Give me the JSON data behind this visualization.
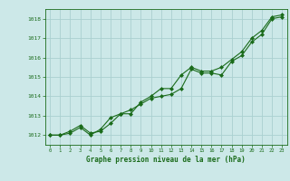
{
  "x": [
    0,
    1,
    2,
    3,
    4,
    5,
    6,
    7,
    8,
    9,
    10,
    11,
    12,
    13,
    14,
    15,
    16,
    17,
    18,
    19,
    20,
    21,
    22,
    23
  ],
  "line1": [
    1012.0,
    1012.0,
    1012.2,
    1012.5,
    1012.1,
    1012.2,
    1012.6,
    1013.1,
    1013.3,
    1013.6,
    1013.9,
    1014.0,
    1014.1,
    1014.4,
    1015.4,
    1015.2,
    1015.2,
    1015.1,
    1015.8,
    1016.1,
    1016.8,
    1017.2,
    1018.0,
    1018.1
  ],
  "line2": [
    1012.0,
    1012.0,
    1012.1,
    1012.4,
    1012.0,
    1012.3,
    1012.9,
    1013.1,
    1013.1,
    1013.7,
    1014.0,
    1014.4,
    1014.4,
    1015.1,
    1015.5,
    1015.3,
    1015.3,
    1015.5,
    1015.9,
    1016.3,
    1017.0,
    1017.4,
    1018.1,
    1018.2
  ],
  "ylim": [
    1011.5,
    1018.5
  ],
  "yticks": [
    1012,
    1013,
    1014,
    1015,
    1016,
    1017,
    1018
  ],
  "xticks": [
    0,
    1,
    2,
    3,
    4,
    5,
    6,
    7,
    8,
    9,
    10,
    11,
    12,
    13,
    14,
    15,
    16,
    17,
    18,
    19,
    20,
    21,
    22,
    23
  ],
  "xlabel": "Graphe pression niveau de la mer (hPa)",
  "bg_color": "#cce8e8",
  "grid_color": "#aad0d0",
  "line_color": "#1a6b1a",
  "marker": "D",
  "marker_size": 2.0,
  "linewidth": 0.8
}
